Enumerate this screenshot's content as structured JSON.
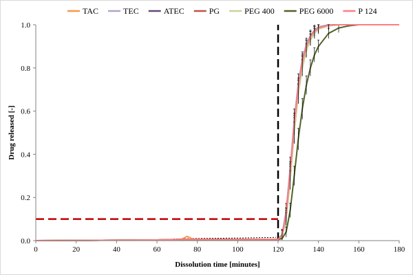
{
  "chart_data": {
    "type": "line",
    "xlabel": "Dissolution time [minutes]",
    "ylabel": "Drug released [-]",
    "xlim": [
      0,
      180
    ],
    "ylim": [
      0,
      1
    ],
    "xticks": [
      "0",
      "20",
      "40",
      "60",
      "80",
      "100",
      "120",
      "140",
      "160",
      "180"
    ],
    "yticks": [
      "0.0",
      "0.2",
      "0.4",
      "0.6",
      "0.8",
      "1.0"
    ],
    "grid": false,
    "legend_position": "top",
    "series": [
      {
        "name": "TAC",
        "color": "#f79646",
        "points": [
          [
            0,
            0
          ],
          [
            60,
            0.003
          ],
          [
            72,
            0.006
          ],
          [
            75,
            0.02
          ],
          [
            78,
            0.006
          ],
          [
            100,
            0.005
          ],
          [
            120,
            0.005
          ],
          [
            122,
            0.02
          ],
          [
            124,
            0.1
          ],
          [
            126,
            0.28
          ],
          [
            128,
            0.5
          ],
          [
            130,
            0.68
          ],
          [
            132,
            0.8
          ],
          [
            134,
            0.88
          ],
          [
            136,
            0.93
          ],
          [
            138,
            0.96
          ],
          [
            140,
            0.98
          ],
          [
            145,
            0.995
          ],
          [
            150,
            1.0
          ],
          [
            180,
            1.0
          ]
        ]
      },
      {
        "name": "TEC",
        "color": "#b3a2c7",
        "points": [
          [
            0,
            0
          ],
          [
            60,
            0.003
          ],
          [
            75,
            0.006
          ],
          [
            100,
            0.005
          ],
          [
            120,
            0.006
          ],
          [
            122,
            0.03
          ],
          [
            124,
            0.14
          ],
          [
            126,
            0.34
          ],
          [
            128,
            0.56
          ],
          [
            130,
            0.73
          ],
          [
            132,
            0.84
          ],
          [
            134,
            0.91
          ],
          [
            136,
            0.95
          ],
          [
            138,
            0.975
          ],
          [
            140,
            0.99
          ],
          [
            145,
            1.0
          ],
          [
            180,
            1.0
          ]
        ]
      },
      {
        "name": "ATEC",
        "color": "#604a7b",
        "points": [
          [
            0,
            0
          ],
          [
            60,
            0.003
          ],
          [
            75,
            0.006
          ],
          [
            100,
            0.005
          ],
          [
            120,
            0.006
          ],
          [
            122,
            0.025
          ],
          [
            124,
            0.12
          ],
          [
            126,
            0.31
          ],
          [
            128,
            0.53
          ],
          [
            130,
            0.7
          ],
          [
            132,
            0.82
          ],
          [
            134,
            0.9
          ],
          [
            136,
            0.945
          ],
          [
            138,
            0.97
          ],
          [
            140,
            0.985
          ],
          [
            145,
            0.998
          ],
          [
            150,
            1.0
          ],
          [
            180,
            1.0
          ]
        ]
      },
      {
        "name": "PG",
        "color": "#c0504d",
        "points": [
          [
            0,
            0
          ],
          [
            60,
            0.003
          ],
          [
            75,
            0.006
          ],
          [
            100,
            0.005
          ],
          [
            120,
            0.005
          ],
          [
            122,
            0.02
          ],
          [
            124,
            0.11
          ],
          [
            126,
            0.3
          ],
          [
            128,
            0.52
          ],
          [
            130,
            0.7
          ],
          [
            132,
            0.82
          ],
          [
            134,
            0.9
          ],
          [
            136,
            0.945
          ],
          [
            138,
            0.97
          ],
          [
            140,
            0.985
          ],
          [
            145,
            0.998
          ],
          [
            150,
            1.0
          ],
          [
            180,
            1.0
          ]
        ]
      },
      {
        "name": "PEG 400",
        "color": "#c3d69b",
        "points": [
          [
            0,
            0
          ],
          [
            60,
            0.003
          ],
          [
            75,
            0.006
          ],
          [
            100,
            0.005
          ],
          [
            120,
            0.005
          ],
          [
            122,
            0.02
          ],
          [
            124,
            0.1
          ],
          [
            126,
            0.28
          ],
          [
            128,
            0.5
          ],
          [
            130,
            0.68
          ],
          [
            132,
            0.8
          ],
          [
            134,
            0.88
          ],
          [
            136,
            0.93
          ],
          [
            138,
            0.96
          ],
          [
            140,
            0.98
          ],
          [
            145,
            0.995
          ],
          [
            150,
            1.0
          ],
          [
            180,
            1.0
          ]
        ]
      },
      {
        "name": "PEG 6000",
        "color": "#4f6228",
        "points": [
          [
            0,
            0
          ],
          [
            60,
            0.003
          ],
          [
            75,
            0.006
          ],
          [
            100,
            0.005
          ],
          [
            120,
            0.005
          ],
          [
            122,
            0.01
          ],
          [
            124,
            0.04
          ],
          [
            126,
            0.14
          ],
          [
            128,
            0.3
          ],
          [
            130,
            0.47
          ],
          [
            132,
            0.61
          ],
          [
            134,
            0.72
          ],
          [
            136,
            0.8
          ],
          [
            138,
            0.86
          ],
          [
            140,
            0.9
          ],
          [
            145,
            0.96
          ],
          [
            150,
            0.985
          ],
          [
            155,
            0.995
          ],
          [
            160,
            1.0
          ],
          [
            180,
            1.0
          ]
        ]
      },
      {
        "name": "P 124",
        "color": "#ff7c80",
        "points": [
          [
            0,
            0
          ],
          [
            60,
            0.003
          ],
          [
            75,
            0.006
          ],
          [
            100,
            0.005
          ],
          [
            120,
            0.005
          ],
          [
            122,
            0.025
          ],
          [
            124,
            0.12
          ],
          [
            126,
            0.32
          ],
          [
            128,
            0.54
          ],
          [
            130,
            0.71
          ],
          [
            132,
            0.83
          ],
          [
            134,
            0.9
          ],
          [
            136,
            0.945
          ],
          [
            138,
            0.97
          ],
          [
            140,
            0.985
          ],
          [
            145,
            0.998
          ],
          [
            150,
            1.0
          ],
          [
            180,
            1.0
          ]
        ]
      }
    ],
    "reference_lines": [
      {
        "kind": "horizontal",
        "y": 0.1,
        "x_from": 0,
        "x_to": 120,
        "color": "#c00000",
        "style": "dashed"
      },
      {
        "kind": "vertical",
        "x": 120,
        "y_from": 0,
        "y_to": 1,
        "color": "#000000",
        "style": "dashed"
      }
    ],
    "baseline_trace": {
      "color": "#000000",
      "style": "dotted",
      "points": [
        [
          60,
          0.003
        ],
        [
          70,
          0.008
        ],
        [
          80,
          0.01
        ],
        [
          100,
          0.012
        ],
        [
          119,
          0.015
        ]
      ]
    }
  }
}
